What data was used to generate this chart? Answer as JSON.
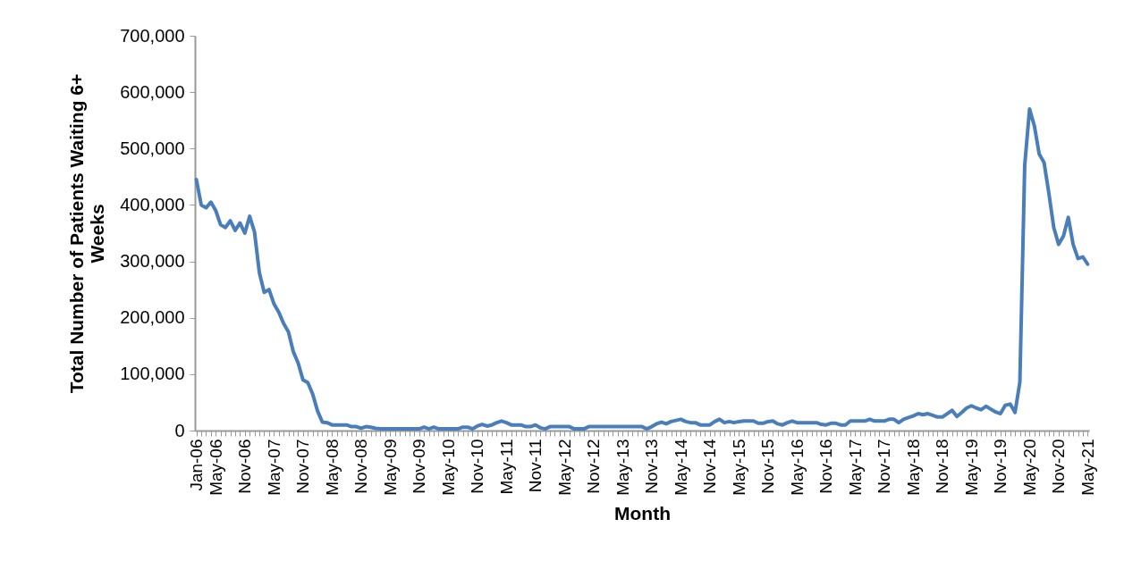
{
  "chart_data": {
    "type": "line",
    "xlabel": "Month",
    "ylabel": "Total Number of Patients Waiting 6+ Weeks",
    "categories": [
      "Jan-06",
      null,
      null,
      null,
      "May-06",
      null,
      null,
      null,
      null,
      null,
      "Nov-06",
      null,
      null,
      null,
      null,
      null,
      "May-07",
      null,
      null,
      null,
      null,
      null,
      "Nov-07",
      null,
      null,
      null,
      null,
      null,
      "May-08",
      null,
      null,
      null,
      null,
      null,
      "Nov-08",
      null,
      null,
      null,
      null,
      null,
      "May-09",
      null,
      null,
      null,
      null,
      null,
      "Nov-09",
      null,
      null,
      null,
      null,
      null,
      "May-10",
      null,
      null,
      null,
      null,
      null,
      "Nov-10",
      null,
      null,
      null,
      null,
      null,
      "May-11",
      null,
      null,
      null,
      null,
      null,
      "Nov-11",
      null,
      null,
      null,
      null,
      null,
      "May-12",
      null,
      null,
      null,
      null,
      null,
      "Nov-12",
      null,
      null,
      null,
      null,
      null,
      "May-13",
      null,
      null,
      null,
      null,
      null,
      "Nov-13",
      null,
      null,
      null,
      null,
      null,
      "May-14",
      null,
      null,
      null,
      null,
      null,
      "Nov-14",
      null,
      null,
      null,
      null,
      null,
      "May-15",
      null,
      null,
      null,
      null,
      null,
      "Nov-15",
      null,
      null,
      null,
      null,
      null,
      "May-16",
      null,
      null,
      null,
      null,
      null,
      "Nov-16",
      null,
      null,
      null,
      null,
      null,
      "May-17",
      null,
      null,
      null,
      null,
      null,
      "Nov-17",
      null,
      null,
      null,
      null,
      null,
      "May-18",
      null,
      null,
      null,
      null,
      null,
      "Nov-18",
      null,
      null,
      null,
      null,
      null,
      "May-19",
      null,
      null,
      null,
      null,
      null,
      "Nov-19",
      null,
      null,
      null,
      null,
      null,
      "May-20",
      null,
      null,
      null,
      null,
      null,
      "Nov-20",
      null,
      null,
      null,
      null,
      null,
      "May-21"
    ],
    "series": [
      {
        "color": "#4a7ebb",
        "values": [
          445000,
          400000,
          395000,
          405000,
          390000,
          365000,
          360000,
          372000,
          355000,
          368000,
          350000,
          380000,
          352000,
          280000,
          245000,
          250000,
          225000,
          210000,
          190000,
          175000,
          140000,
          120000,
          90000,
          85000,
          65000,
          35000,
          15000,
          14000,
          10000,
          10000,
          10000,
          10000,
          7000,
          7000,
          4000,
          7000,
          6000,
          4000,
          3000,
          3000,
          3000,
          3000,
          3000,
          3000,
          3000,
          3000,
          3000,
          6000,
          3000,
          6000,
          3000,
          3000,
          3000,
          3000,
          3000,
          6000,
          6000,
          3000,
          8000,
          11000,
          8000,
          10000,
          14000,
          17000,
          14000,
          10000,
          10000,
          10000,
          7000,
          7000,
          10000,
          5000,
          3000,
          7000,
          7000,
          7000,
          7000,
          7000,
          3000,
          3000,
          3000,
          7000,
          7000,
          7000,
          7000,
          7000,
          7000,
          7000,
          7000,
          7000,
          7000,
          7000,
          7000,
          3000,
          7000,
          12000,
          15000,
          12000,
          16000,
          18000,
          20000,
          16000,
          14000,
          14000,
          10000,
          10000,
          10000,
          16000,
          20000,
          14000,
          16000,
          14000,
          16000,
          17000,
          17000,
          17000,
          13000,
          13000,
          16000,
          17000,
          12000,
          10000,
          14000,
          17000,
          14000,
          14000,
          14000,
          14000,
          14000,
          11000,
          10000,
          13000,
          13000,
          10000,
          10000,
          17000,
          17000,
          17000,
          17000,
          20000,
          17000,
          17000,
          17000,
          20000,
          20000,
          14000,
          20000,
          23000,
          26000,
          30000,
          28000,
          30000,
          27000,
          24000,
          24000,
          30000,
          36000,
          25000,
          32000,
          40000,
          44000,
          40000,
          37000,
          43000,
          38000,
          33000,
          30000,
          45000,
          47000,
          32000,
          86000,
          470000,
          570000,
          540000,
          490000,
          475000,
          420000,
          360000,
          330000,
          345000,
          378000,
          330000,
          305000,
          308000,
          295000
        ]
      }
    ],
    "ylim": [
      0,
      700000
    ],
    "yticks": [
      {
        "value": 0,
        "label": "0"
      },
      {
        "value": 100000,
        "label": "100,000"
      },
      {
        "value": 200000,
        "label": "200,000"
      },
      {
        "value": 300000,
        "label": "300,000"
      },
      {
        "value": 400000,
        "label": "400,000"
      },
      {
        "value": 500000,
        "label": "500,000"
      },
      {
        "value": 600000,
        "label": "600,000"
      },
      {
        "value": 700000,
        "label": "700,000"
      }
    ],
    "grid": false,
    "legend": false,
    "marker": "none",
    "line_style": "solid"
  }
}
